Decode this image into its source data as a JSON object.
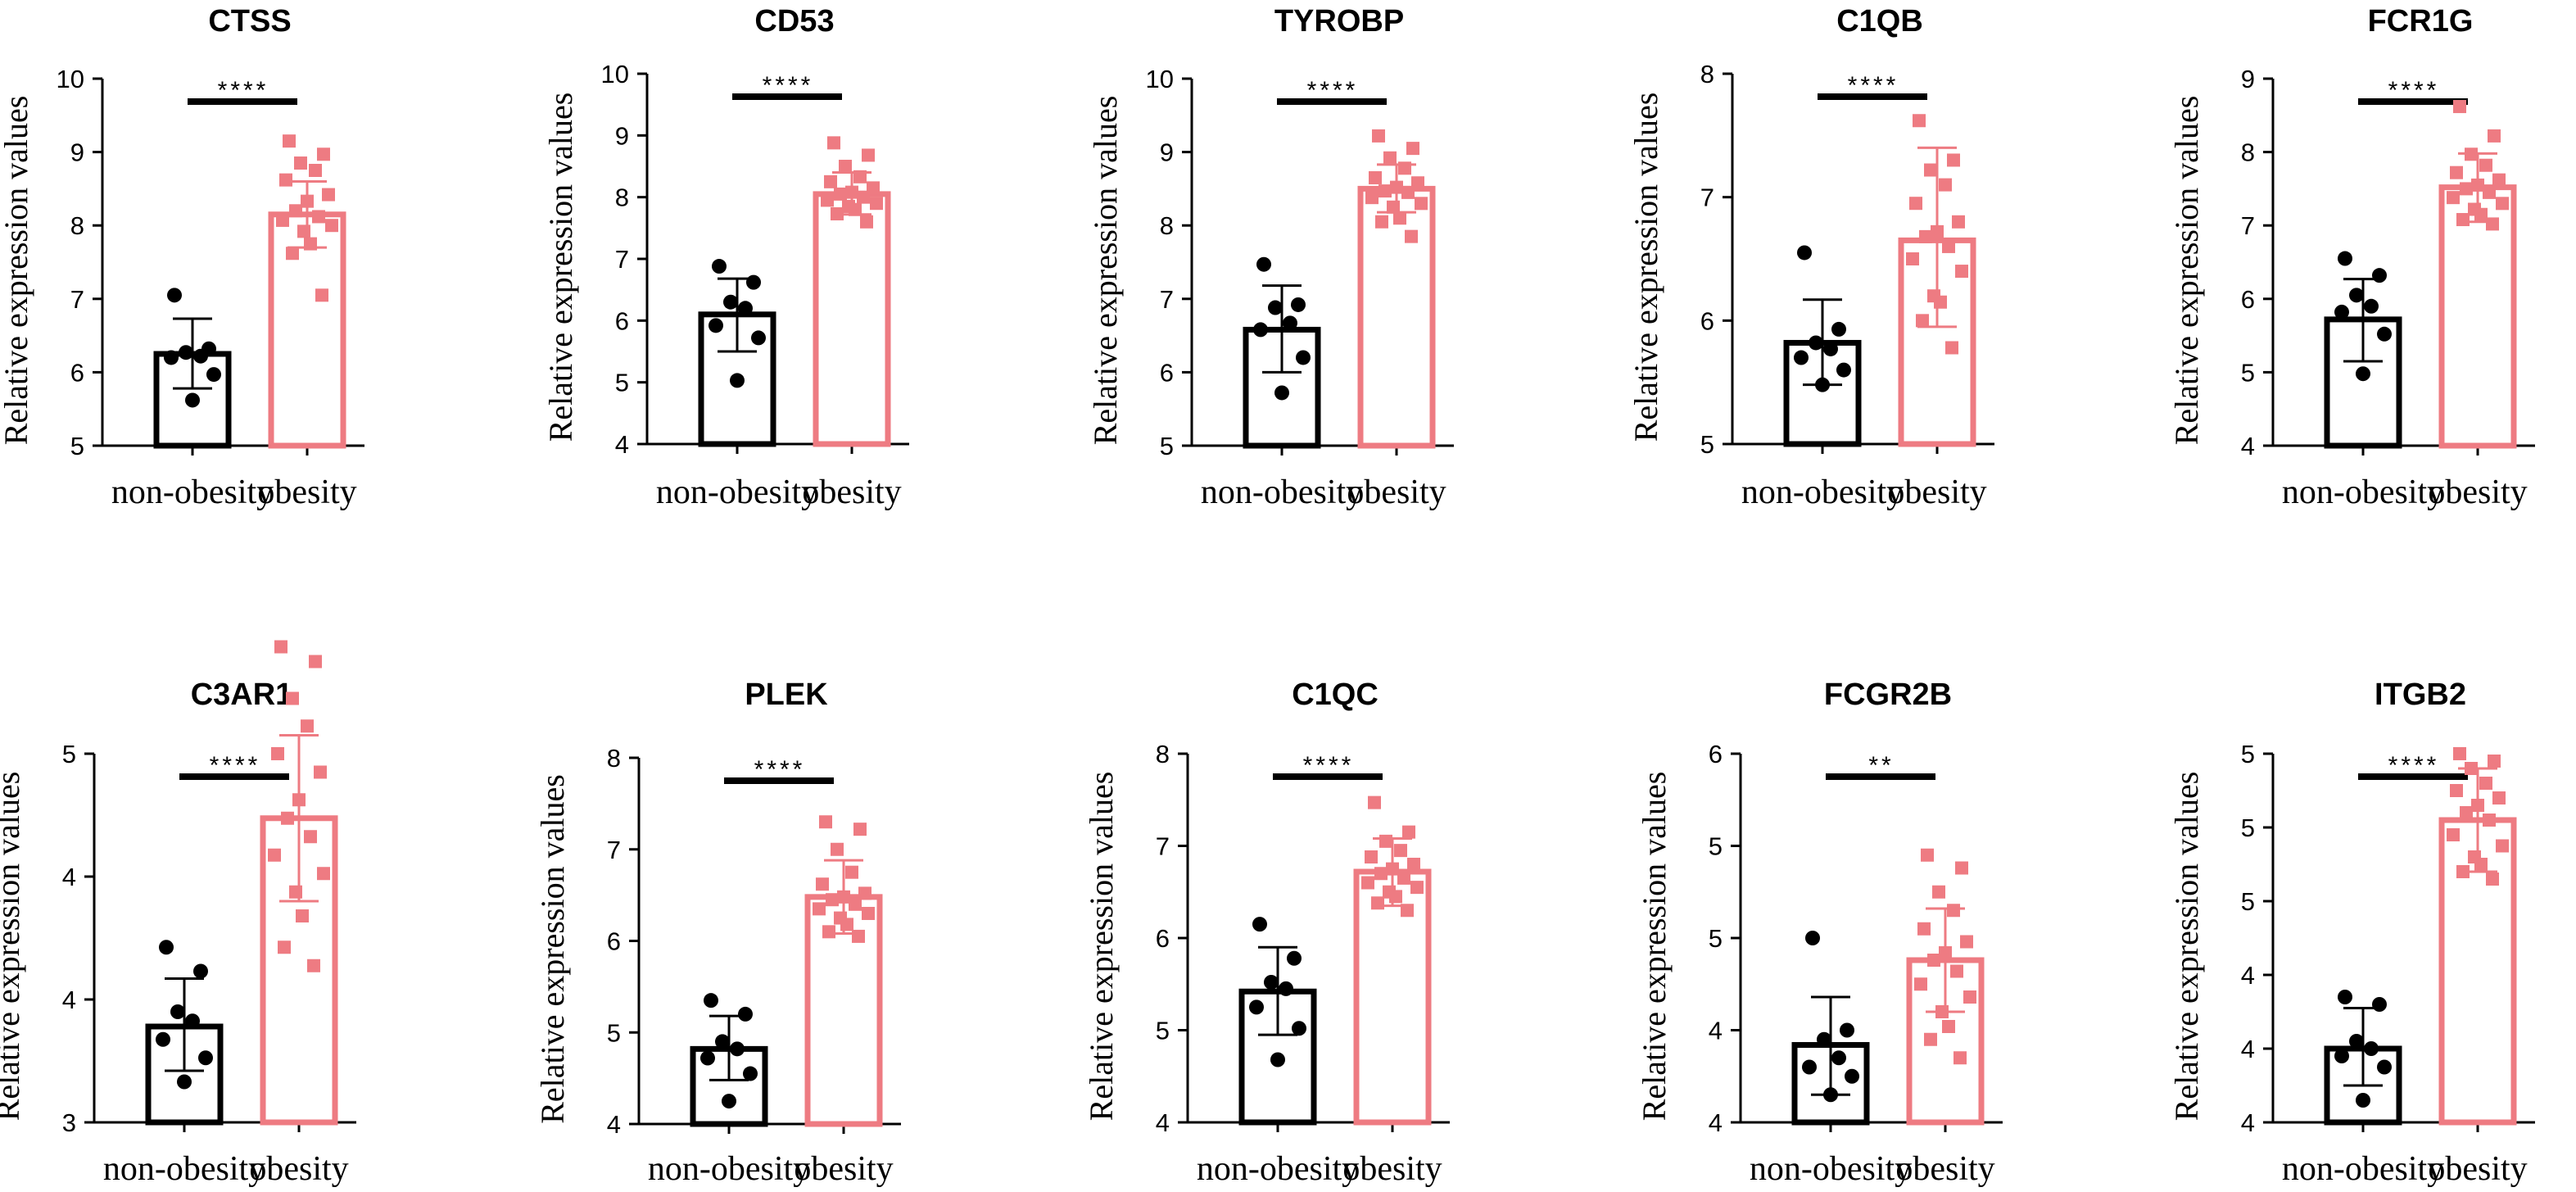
{
  "colors": {
    "control": "#000000",
    "case": "#ee7b82",
    "caseLight": "#f2a4a8"
  },
  "chart_data": [
    {
      "type": "bar",
      "title": "CTSS",
      "ylabel": "Relative expression values",
      "categories": [
        "non-obesity",
        "obesity"
      ],
      "ylim": [
        5,
        10
      ],
      "yticks": [
        "5",
        "6",
        "7",
        "8",
        "9",
        "10"
      ],
      "significance": "****",
      "series": [
        {
          "name": "non-obesity",
          "mean": 6.25,
          "error": [
            5.78,
            6.73
          ],
          "points": [
            7.05,
            6.32,
            6.27,
            6.22,
            6.2,
            5.97,
            5.62
          ]
        },
        {
          "name": "obesity",
          "mean": 8.15,
          "error": [
            7.7,
            8.6
          ],
          "points": [
            9.15,
            8.97,
            8.85,
            8.75,
            8.62,
            8.42,
            8.33,
            8.2,
            8.12,
            8.07,
            8.0,
            7.92,
            7.75,
            7.62,
            7.05
          ]
        }
      ]
    },
    {
      "type": "bar",
      "title": "CD53",
      "ylabel": "Relative expression values",
      "categories": [
        "non-obesity",
        "obesity"
      ],
      "ylim": [
        4,
        10
      ],
      "yticks": [
        "4",
        "5",
        "6",
        "7",
        "8",
        "9",
        "10"
      ],
      "significance": "****",
      "series": [
        {
          "name": "non-obesity",
          "mean": 6.1,
          "error": [
            5.5,
            6.68
          ],
          "points": [
            6.88,
            6.62,
            6.3,
            6.2,
            5.92,
            5.72,
            5.03
          ]
        },
        {
          "name": "obesity",
          "mean": 8.05,
          "error": [
            7.72,
            8.4
          ],
          "points": [
            8.88,
            8.68,
            8.5,
            8.33,
            8.25,
            8.15,
            8.08,
            8.05,
            8.0,
            7.95,
            7.9,
            7.85,
            7.8,
            7.73,
            7.6
          ]
        }
      ]
    },
    {
      "type": "bar",
      "title": "TYROBP",
      "ylabel": "Relative expression values",
      "categories": [
        "non-obesity",
        "obesity"
      ],
      "ylim": [
        5,
        10
      ],
      "yticks": [
        "5",
        "6",
        "7",
        "8",
        "9",
        "10"
      ],
      "significance": "****",
      "series": [
        {
          "name": "non-obesity",
          "mean": 6.58,
          "error": [
            6.0,
            7.18
          ],
          "points": [
            7.47,
            6.92,
            6.88,
            6.67,
            6.58,
            6.2,
            5.72
          ]
        },
        {
          "name": "obesity",
          "mean": 8.5,
          "error": [
            8.18,
            8.83
          ],
          "points": [
            9.22,
            9.05,
            8.92,
            8.78,
            8.65,
            8.58,
            8.52,
            8.47,
            8.45,
            8.38,
            8.3,
            8.25,
            8.1,
            8.05,
            7.85
          ]
        }
      ]
    },
    {
      "type": "bar",
      "title": "C1QB",
      "ylabel": "Relative expression values",
      "categories": [
        "non-obesity",
        "obesity"
      ],
      "ylim": [
        5,
        8
      ],
      "yticks": [
        "5",
        "6",
        "7",
        "8"
      ],
      "significance": "****",
      "series": [
        {
          "name": "non-obesity",
          "mean": 5.82,
          "error": [
            5.48,
            6.17
          ],
          "points": [
            6.55,
            5.93,
            5.82,
            5.77,
            5.7,
            5.6,
            5.48
          ]
        },
        {
          "name": "obesity",
          "mean": 6.65,
          "error": [
            5.95,
            7.4
          ],
          "points": [
            7.62,
            7.3,
            7.22,
            7.1,
            6.95,
            6.8,
            6.72,
            6.68,
            6.6,
            6.5,
            6.4,
            6.2,
            6.15,
            6.0,
            5.78
          ]
        }
      ]
    },
    {
      "type": "bar",
      "title": "FCR1G",
      "ylabel": "Relative expression values",
      "categories": [
        "non-obesity",
        "obesity"
      ],
      "ylim": [
        4,
        9
      ],
      "yticks": [
        "4",
        "5",
        "6",
        "7",
        "8",
        "9"
      ],
      "significance": "****",
      "series": [
        {
          "name": "non-obesity",
          "mean": 5.72,
          "error": [
            5.15,
            6.27
          ],
          "points": [
            6.55,
            6.32,
            6.05,
            5.9,
            5.82,
            5.52,
            4.98
          ]
        },
        {
          "name": "obesity",
          "mean": 7.52,
          "error": [
            7.05,
            7.98
          ],
          "points": [
            8.62,
            8.22,
            7.97,
            7.82,
            7.72,
            7.62,
            7.55,
            7.5,
            7.45,
            7.38,
            7.3,
            7.22,
            7.15,
            7.08,
            7.02
          ]
        }
      ]
    },
    {
      "type": "bar",
      "title": "C3AR1",
      "ylabel": "Relative expression values",
      "categories": [
        "non-obesity",
        "obesity"
      ],
      "ylim": [
        3,
        5
      ],
      "yticks": [
        "3",
        "4",
        "4",
        "5"
      ],
      "significance": "****",
      "series": [
        {
          "name": "non-obesity",
          "mean": 3.52,
          "error": [
            3.28,
            3.78
          ],
          "points": [
            3.95,
            3.82,
            3.6,
            3.55,
            3.45,
            3.35,
            3.22
          ]
        },
        {
          "name": "obesity",
          "mean": 4.65,
          "error": [
            4.2,
            5.1
          ],
          "points": [
            5.58,
            5.5,
            5.3,
            5.15,
            5.0,
            4.9,
            4.75,
            4.65,
            4.55,
            4.45,
            4.35,
            4.25,
            4.12,
            3.95,
            3.85
          ]
        }
      ]
    },
    {
      "type": "bar",
      "title": "PLEK",
      "ylabel": "Relative expression values",
      "categories": [
        "non-obesity",
        "obesity"
      ],
      "ylim": [
        4,
        8
      ],
      "yticks": [
        "4",
        "5",
        "6",
        "7",
        "8"
      ],
      "significance": "****",
      "series": [
        {
          "name": "non-obesity",
          "mean": 4.82,
          "error": [
            4.48,
            5.18
          ],
          "points": [
            5.35,
            5.2,
            4.9,
            4.82,
            4.72,
            4.55,
            4.25
          ]
        },
        {
          "name": "obesity",
          "mean": 6.48,
          "error": [
            6.08,
            6.88
          ],
          "points": [
            7.3,
            7.22,
            7.0,
            6.75,
            6.62,
            6.52,
            6.48,
            6.45,
            6.4,
            6.35,
            6.3,
            6.25,
            6.18,
            6.1,
            6.05
          ]
        }
      ]
    },
    {
      "type": "bar",
      "title": "C1QC",
      "ylabel": "Relative expression values",
      "categories": [
        "non-obesity",
        "obesity"
      ],
      "ylim": [
        4,
        8
      ],
      "yticks": [
        "4",
        "5",
        "6",
        "7",
        "8"
      ],
      "significance": "****",
      "series": [
        {
          "name": "non-obesity",
          "mean": 5.42,
          "error": [
            4.95,
            5.9
          ],
          "points": [
            6.15,
            5.78,
            5.52,
            5.45,
            5.25,
            5.02,
            4.68
          ]
        },
        {
          "name": "obesity",
          "mean": 6.72,
          "error": [
            6.35,
            7.08
          ],
          "points": [
            7.47,
            7.15,
            7.05,
            6.95,
            6.88,
            6.8,
            6.75,
            6.7,
            6.65,
            6.6,
            6.55,
            6.5,
            6.45,
            6.38,
            6.3
          ]
        }
      ]
    },
    {
      "type": "bar",
      "title": "FCGR2B",
      "ylabel": "Relative expression values",
      "categories": [
        "non-obesity",
        "obesity"
      ],
      "ylim": [
        4,
        6
      ],
      "yticks": [
        "4",
        "4",
        "5",
        "5",
        "6"
      ],
      "significance": "**",
      "series": [
        {
          "name": "non-obesity",
          "mean": 4.42,
          "error": [
            4.15,
            4.68
          ],
          "points": [
            5.0,
            4.5,
            4.45,
            4.35,
            4.3,
            4.25,
            4.15
          ]
        },
        {
          "name": "obesity",
          "mean": 4.88,
          "error": [
            4.6,
            5.16
          ],
          "points": [
            5.45,
            5.38,
            5.25,
            5.15,
            5.05,
            4.98,
            4.92,
            4.88,
            4.82,
            4.75,
            4.68,
            4.6,
            4.52,
            4.45,
            4.35
          ]
        }
      ]
    },
    {
      "type": "bar",
      "title": "ITGB2",
      "ylabel": "Relative expression values",
      "categories": [
        "non-obesity",
        "obesity"
      ],
      "ylim": [
        4,
        5
      ],
      "yticks": [
        "4",
        "4",
        "4",
        "5",
        "5",
        "5"
      ],
      "significance": "****",
      "series": [
        {
          "name": "non-obesity",
          "mean": 4.2,
          "error": [
            4.1,
            4.31
          ],
          "points": [
            4.34,
            4.32,
            4.22,
            4.2,
            4.18,
            4.15,
            4.06
          ]
        },
        {
          "name": "obesity",
          "mean": 4.82,
          "error": [
            4.68,
            4.96
          ],
          "points": [
            5.0,
            4.98,
            4.96,
            4.92,
            4.9,
            4.88,
            4.86,
            4.84,
            4.82,
            4.78,
            4.75,
            4.72,
            4.7,
            4.68,
            4.66
          ]
        }
      ]
    }
  ]
}
